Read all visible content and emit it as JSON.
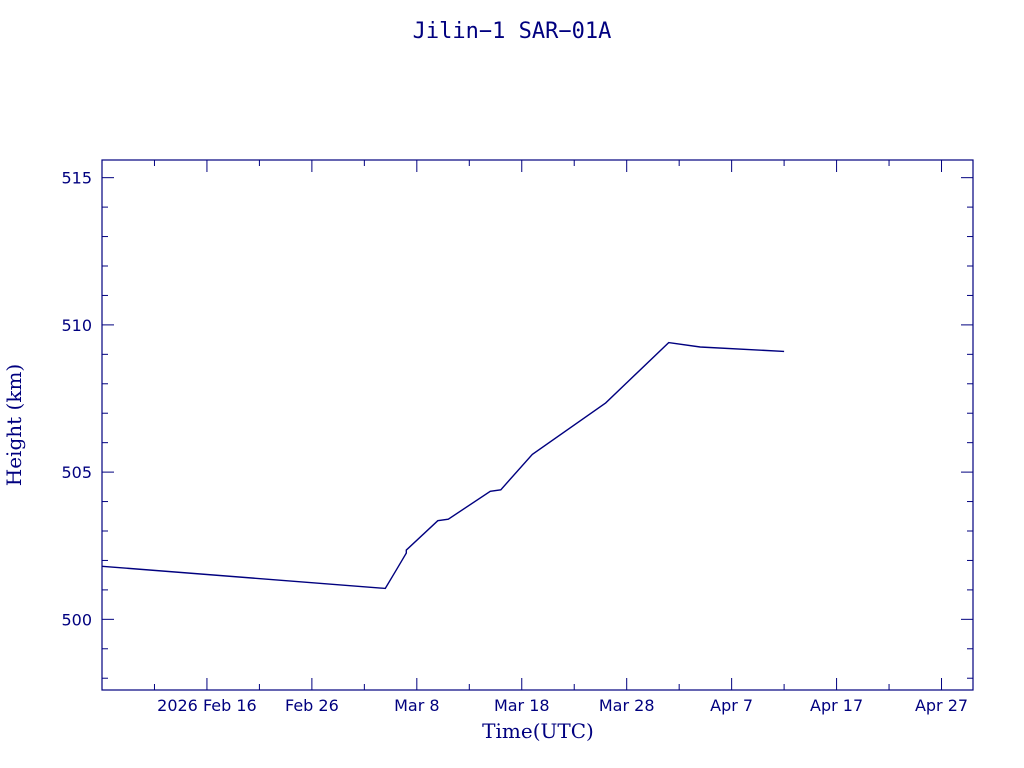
{
  "chart_data": {
    "type": "line",
    "title": "Jilin−1 SAR−01A",
    "xlabel": "Time(UTC)",
    "ylabel": "Height (km)",
    "x_is_date": true,
    "xlim": [
      "2026-02-06",
      "2026-04-30"
    ],
    "ylim": [
      497.6,
      515.6
    ],
    "x_ticks": [
      {
        "date": "2026-02-16",
        "label": "2026 Feb 16"
      },
      {
        "date": "2026-02-26",
        "label": "Feb 26"
      },
      {
        "date": "2026-03-08",
        "label": "Mar  8"
      },
      {
        "date": "2026-03-18",
        "label": "Mar 18"
      },
      {
        "date": "2026-03-28",
        "label": "Mar 28"
      },
      {
        "date": "2026-04-07",
        "label": "Apr  7"
      },
      {
        "date": "2026-04-17",
        "label": "Apr 17"
      },
      {
        "date": "2026-04-27",
        "label": "Apr 27"
      }
    ],
    "y_ticks": [
      {
        "value": 500,
        "label": "500"
      },
      {
        "value": 505,
        "label": "505"
      },
      {
        "value": 510,
        "label": "510"
      },
      {
        "value": 515,
        "label": "515"
      }
    ],
    "grid": false,
    "legend": "none",
    "colors": {
      "line": "#00007f",
      "axes": "#00007f",
      "background": "#ffffff"
    },
    "series": [
      {
        "points": [
          [
            "2026-02-06",
            501.8
          ],
          [
            "2026-03-05",
            501.05
          ],
          [
            "2026-03-06",
            501.65
          ],
          [
            "2026-03-07",
            502.25
          ],
          [
            "2026-03-07",
            502.35
          ],
          [
            "2026-03-10",
            503.35
          ],
          [
            "2026-03-11",
            503.4
          ],
          [
            "2026-03-15",
            504.35
          ],
          [
            "2026-03-16",
            504.4
          ],
          [
            "2026-03-19",
            505.6
          ],
          [
            "2026-03-26",
            507.35
          ],
          [
            "2026-04-01",
            509.4
          ],
          [
            "2026-04-04",
            509.25
          ],
          [
            "2026-04-12",
            509.1
          ]
        ]
      }
    ]
  }
}
